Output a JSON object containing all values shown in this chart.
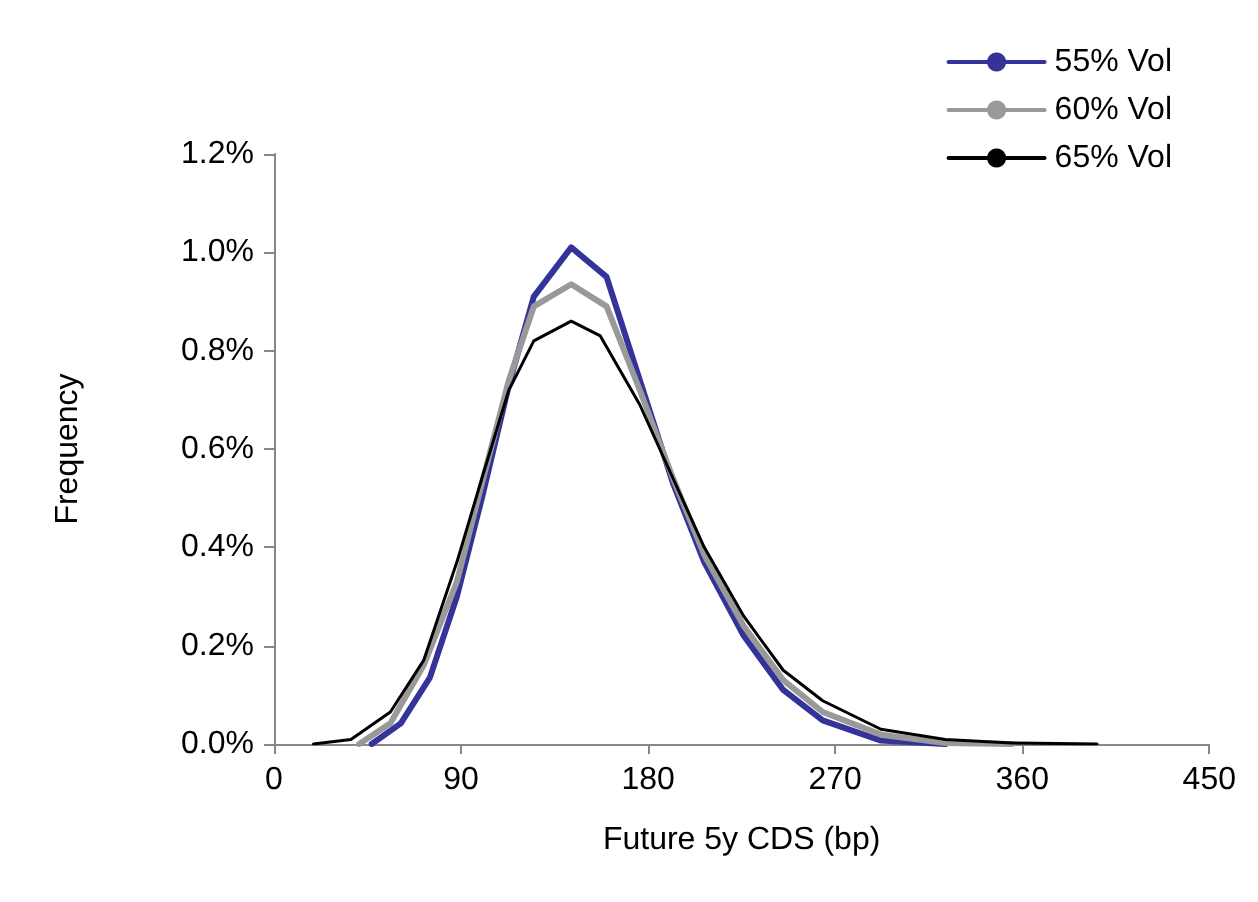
{
  "chart_data": {
    "type": "line",
    "xlabel": "Future 5y CDS (bp)",
    "ylabel": "Frequency",
    "xlim": [
      0,
      450
    ],
    "xticks": [
      0,
      90,
      180,
      270,
      360,
      450
    ],
    "ylim": [
      0,
      1.2
    ],
    "yticks": [
      {
        "value": 0,
        "label": "0.0%"
      },
      {
        "value": 0.2,
        "label": "0.2%"
      },
      {
        "value": 0.4,
        "label": "0.4%"
      },
      {
        "value": 0.6,
        "label": "0.6%"
      },
      {
        "value": 0.8,
        "label": "0.8%"
      },
      {
        "value": 1.0,
        "label": "1.0%"
      },
      {
        "value": 1.2,
        "label": "1.2%"
      }
    ],
    "grid": false,
    "legend": "top right",
    "marker": "none",
    "line_style": "solid",
    "series": [
      {
        "name": "55% Vol",
        "color": "#333399",
        "x": [
          47,
          61,
          75,
          88,
          100,
          113,
          125,
          143,
          160,
          176,
          192,
          207,
          226,
          245,
          264,
          292,
          323
        ],
        "values": [
          0,
          0.042,
          0.135,
          0.3,
          0.5,
          0.73,
          0.91,
          1.01,
          0.95,
          0.74,
          0.53,
          0.37,
          0.22,
          0.11,
          0.048,
          0.007,
          0
        ]
      },
      {
        "name": "60% Vol",
        "color": "#999999",
        "x": [
          41,
          56,
          72,
          88,
          100,
          113,
          125,
          143,
          160,
          176,
          192,
          207,
          226,
          245,
          264,
          292,
          323,
          355
        ],
        "values": [
          0,
          0.042,
          0.16,
          0.33,
          0.53,
          0.74,
          0.89,
          0.935,
          0.89,
          0.72,
          0.54,
          0.385,
          0.24,
          0.13,
          0.065,
          0.019,
          0.002,
          0
        ]
      },
      {
        "name": "65% Vol",
        "color": "#000000",
        "x": [
          19,
          37,
          56,
          72,
          88,
          100,
          113,
          125,
          143,
          157,
          176,
          192,
          207,
          226,
          245,
          264,
          292,
          323,
          355,
          396
        ],
        "values": [
          0,
          0.009,
          0.065,
          0.17,
          0.37,
          0.54,
          0.72,
          0.82,
          0.86,
          0.83,
          0.69,
          0.54,
          0.4,
          0.26,
          0.15,
          0.088,
          0.03,
          0.009,
          0.002,
          0
        ]
      }
    ]
  }
}
